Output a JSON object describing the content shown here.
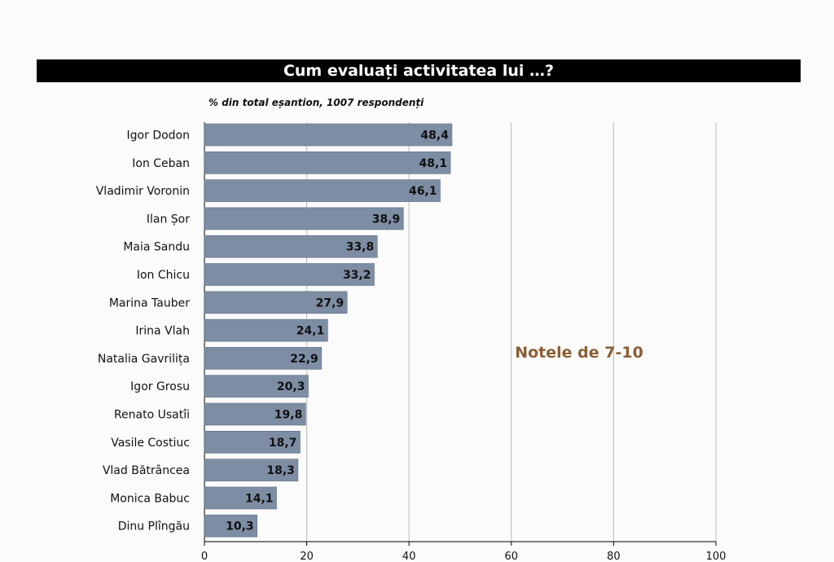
{
  "chart_data": {
    "type": "bar",
    "orientation": "horizontal",
    "title": "Cum evaluați activitatea lui …?",
    "subtitle": "% din total eșantion, 1007 respondenți",
    "annotation": "Notele de 7-10",
    "categories": [
      "Igor Dodon",
      "Ion Ceban",
      "Vladimir Voronin",
      "Ilan Șor",
      "Maia Sandu",
      "Ion Chicu",
      "Marina Tauber",
      "Irina Vlah",
      "Natalia Gavrilița",
      "Igor Grosu",
      "Renato Usatîi",
      "Vasile Costiuc",
      "Vlad Bătrâncea",
      "Monica Babuc",
      "Dinu Plîngău"
    ],
    "values": [
      48.4,
      48.1,
      46.1,
      38.9,
      33.8,
      33.2,
      27.9,
      24.1,
      22.9,
      20.3,
      19.8,
      18.7,
      18.3,
      14.1,
      10.3
    ],
    "value_labels": [
      "48,4",
      "48,1",
      "46,1",
      "38,9",
      "33,8",
      "33,2",
      "27,9",
      "24,1",
      "22,9",
      "20,3",
      "19,8",
      "18,7",
      "18,3",
      "14,1",
      "10,3"
    ],
    "xlim": [
      0,
      100
    ],
    "xticks": [
      0,
      20,
      40,
      60,
      80,
      100
    ],
    "xtick_labels": [
      "0",
      "20",
      "40",
      "60",
      "80",
      "100"
    ],
    "grid": true,
    "colors": {
      "bar": "#7d8ea4",
      "title_bg": "#000000",
      "title_text": "#ffffff",
      "annotation": "#8b5e34",
      "grid": "#c4c4c4"
    }
  }
}
